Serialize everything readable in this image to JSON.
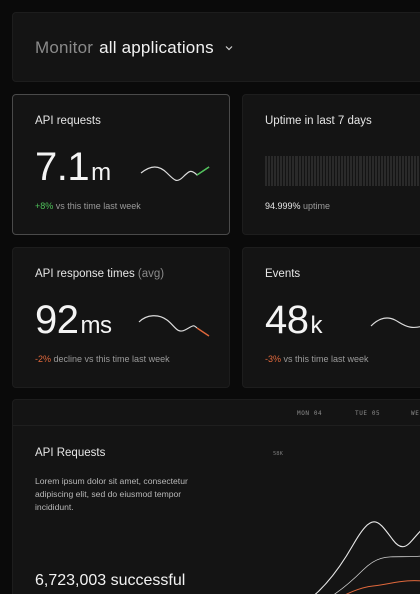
{
  "header": {
    "label": "Monitor",
    "scope": "all applications"
  },
  "cards": {
    "requests": {
      "label": "API requests",
      "value": "7.1",
      "suffix": "m",
      "delta": "+8%",
      "delta_text": "vs this time last week"
    },
    "uptime": {
      "label": "Uptime in last 7 days",
      "value": "94.999%",
      "value_text": "uptime"
    },
    "response": {
      "label": "API response times",
      "unit": "(avg)",
      "value": "92",
      "suffix": "ms",
      "delta": "-2%",
      "delta_text": "decline vs this time last week"
    },
    "events": {
      "label": "Events",
      "value": "48",
      "suffix": "k",
      "delta": "-3%",
      "delta_text": "vs this time last week"
    }
  },
  "detail": {
    "title": "API Requests",
    "description": "Lorem ipsum dolor sit amet, consectetur adipiscing elit, sed do eiusmod tempor incididunt.",
    "y_tick": "58K",
    "days": [
      "MON 04",
      "TUE 05",
      "WE"
    ],
    "successful": "6,723,003 successful"
  },
  "colors": {
    "positive": "#4fc25a",
    "negative": "#e0683c"
  }
}
